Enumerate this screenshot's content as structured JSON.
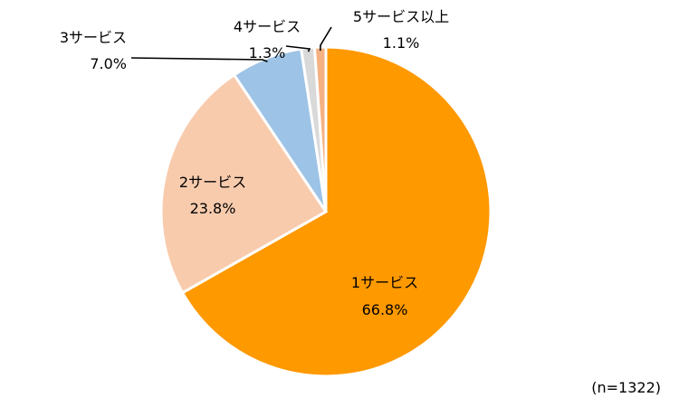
{
  "chart_data": {
    "type": "pie",
    "title": "",
    "start": "12 o'clock, clockwise",
    "slices": [
      {
        "label": "1サービス",
        "value": 66.8,
        "value_label": "66.8%",
        "color": "#FF9900"
      },
      {
        "label": "2サービス",
        "value": 23.8,
        "value_label": "23.8%",
        "color": "#F8CBAD"
      },
      {
        "label": "3サービス",
        "value": 7.0,
        "value_label": "7.0%",
        "color": "#9DC3E6"
      },
      {
        "label": "4サービス",
        "value": 1.3,
        "value_label": "1.3%",
        "color": "#D9D9D9"
      },
      {
        "label": "5サービス以上",
        "value": 1.1,
        "value_label": "1.1%",
        "color": "#F4B183"
      }
    ],
    "note": "(n=1322)"
  }
}
